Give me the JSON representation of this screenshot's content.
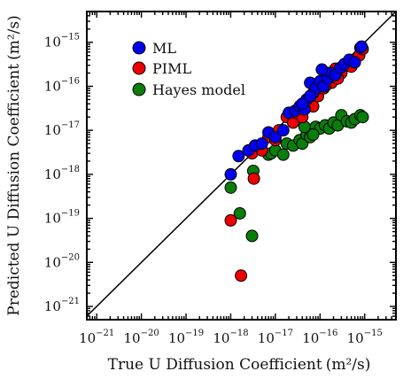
{
  "colors": {
    "ml": "#0000ee",
    "piml": "#ee0000",
    "hayes": "#0a7d0a"
  },
  "chart_data": {
    "type": "scatter",
    "xlabel": "True U Diffusion Coefficient",
    "xunit": "(m²/s)",
    "ylabel": "Predicted U Diffusion Coefficient",
    "yunit": "(m²/s)",
    "xscale": "log",
    "yscale": "log",
    "xlim": [
      6e-22,
      5e-15
    ],
    "ylim": [
      5e-22,
      5e-15
    ],
    "x_ticks": [
      {
        "base": "10",
        "exp": "-21",
        "value": 1e-21
      },
      {
        "base": "10",
        "exp": "-20",
        "value": 1e-20
      },
      {
        "base": "10",
        "exp": "-19",
        "value": 1e-19
      },
      {
        "base": "10",
        "exp": "-18",
        "value": 1e-18
      },
      {
        "base": "10",
        "exp": "-17",
        "value": 1e-17
      },
      {
        "base": "10",
        "exp": "-16",
        "value": 1e-16
      },
      {
        "base": "10",
        "exp": "-15",
        "value": 1e-15
      }
    ],
    "y_ticks": [
      {
        "base": "10",
        "exp": "-21",
        "value": 1e-21
      },
      {
        "base": "10",
        "exp": "-20",
        "value": 1e-20
      },
      {
        "base": "10",
        "exp": "-19",
        "value": 1e-19
      },
      {
        "base": "10",
        "exp": "-18",
        "value": 1e-18
      },
      {
        "base": "10",
        "exp": "-17",
        "value": 1e-17
      },
      {
        "base": "10",
        "exp": "-16",
        "value": 1e-16
      },
      {
        "base": "10",
        "exp": "-15",
        "value": 1e-15
      }
    ],
    "reference_line": "y = x",
    "legend": {
      "position": "upper-left",
      "entries": [
        "ML",
        "PIML",
        "Hayes model"
      ]
    },
    "series": [
      {
        "name": "Hayes model",
        "points": [
          [
            1e-18,
            5e-19
          ],
          [
            1.6e-18,
            1.3e-19
          ],
          [
            3e-18,
            4e-20
          ],
          [
            3.2e-18,
            1.2e-18
          ],
          [
            7e-18,
            2.8e-18
          ],
          [
            8e-18,
            3e-18
          ],
          [
            1e-17,
            3.5e-18
          ],
          [
            1.5e-17,
            2.8e-18
          ],
          [
            1.8e-17,
            5e-18
          ],
          [
            2.5e-17,
            4.5e-18
          ],
          [
            3.5e-17,
            6e-18
          ],
          [
            4e-17,
            5e-18
          ],
          [
            5e-17,
            8e-18
          ],
          [
            6e-17,
            7e-18
          ],
          [
            8e-17,
            1.2e-17
          ],
          [
            1e-16,
            1.1e-17
          ],
          [
            1.3e-16,
            1.3e-17
          ],
          [
            1.6e-16,
            1.1e-17
          ],
          [
            2e-16,
            1.5e-17
          ],
          [
            2.5e-16,
            1.3e-17
          ],
          [
            3e-16,
            2.2e-17
          ],
          [
            4e-16,
            1.6e-17
          ],
          [
            5e-16,
            1.5e-17
          ],
          [
            6e-16,
            1.8e-17
          ],
          [
            8e-16,
            2.2e-17
          ],
          [
            9e-16,
            2e-17
          ],
          [
            4.5e-17,
            1.2e-17
          ],
          [
            7e-17,
            8e-18
          ]
        ]
      },
      {
        "name": "PIML",
        "points": [
          [
            1e-18,
            9e-20
          ],
          [
            1.7e-18,
            5e-21
          ],
          [
            3.3e-18,
            8e-19
          ],
          [
            3e-18,
            3e-18
          ],
          [
            5e-18,
            3.5e-18
          ],
          [
            7e-18,
            7e-18
          ],
          [
            1e-17,
            6e-18
          ],
          [
            1.2e-17,
            1e-17
          ],
          [
            1.8e-17,
            2e-17
          ],
          [
            2.5e-17,
            1.5e-17
          ],
          [
            3e-17,
            2.5e-17
          ],
          [
            4e-17,
            2e-17
          ],
          [
            5e-17,
            4e-17
          ],
          [
            6e-17,
            5e-17
          ],
          [
            7e-17,
            3.5e-17
          ],
          [
            9e-17,
            6e-17
          ],
          [
            1.2e-16,
            9e-17
          ],
          [
            1.5e-16,
            2e-16
          ],
          [
            1.8e-16,
            1.2e-16
          ],
          [
            2.2e-16,
            2.5e-16
          ],
          [
            3e-16,
            2e-16
          ],
          [
            4e-16,
            3e-16
          ],
          [
            5e-16,
            2.8e-16
          ],
          [
            6e-16,
            4e-16
          ],
          [
            7.5e-16,
            5e-16
          ],
          [
            9e-16,
            7e-16
          ],
          [
            1.3e-16,
            1e-16
          ],
          [
            2.5e-16,
            1.5e-16
          ]
        ]
      },
      {
        "name": "ML",
        "points": [
          [
            1e-18,
            1e-18
          ],
          [
            1.5e-18,
            2.6e-18
          ],
          [
            2.5e-18,
            3.5e-18
          ],
          [
            3.5e-18,
            4.5e-18
          ],
          [
            5e-18,
            5e-18
          ],
          [
            7e-18,
            9e-18
          ],
          [
            1e-17,
            7e-18
          ],
          [
            1.5e-17,
            1e-17
          ],
          [
            2e-17,
            2.5e-17
          ],
          [
            2.8e-17,
            2.8e-17
          ],
          [
            3.5e-17,
            3.5e-17
          ],
          [
            4.5e-17,
            3e-17
          ],
          [
            5e-17,
            5e-17
          ],
          [
            6e-17,
            1.2e-16
          ],
          [
            7e-17,
            7e-17
          ],
          [
            8e-17,
            9e-17
          ],
          [
            1e-16,
            1.3e-16
          ],
          [
            1.2e-16,
            1e-16
          ],
          [
            1.5e-16,
            1.5e-16
          ],
          [
            1.8e-16,
            2e-16
          ],
          [
            2.2e-16,
            1.8e-16
          ],
          [
            2.8e-16,
            2.6e-16
          ],
          [
            3.5e-16,
            3.2e-16
          ],
          [
            4.5e-16,
            4e-16
          ],
          [
            6e-16,
            3.5e-16
          ],
          [
            8e-16,
            7.5e-16
          ],
          [
            8.5e-16,
            8e-16
          ],
          [
            4e-17,
            4e-17
          ],
          [
            6e-17,
            6e-17
          ],
          [
            1.1e-16,
            2.4e-16
          ]
        ]
      }
    ]
  }
}
